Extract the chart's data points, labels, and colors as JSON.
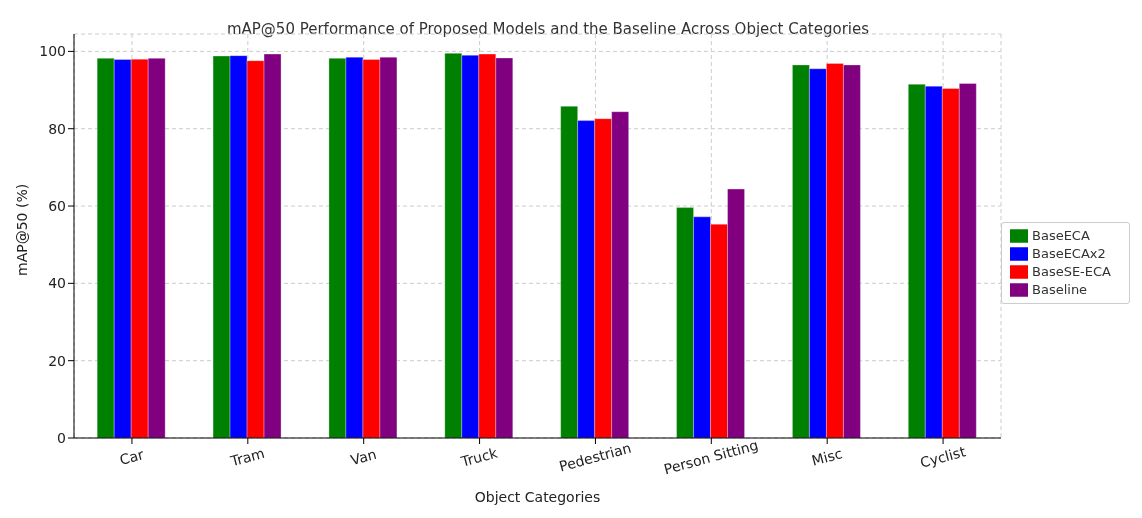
{
  "chart_data": {
    "type": "bar",
    "title": "mAP@50 Performance of Proposed Models and the Baseline Across Object Categories",
    "xlabel": "Object Categories",
    "ylabel": "mAP@50 (%)",
    "categories": [
      "Car",
      "Tram",
      "Van",
      "Truck",
      "Pedestrian",
      "Person Sitting",
      "Misc",
      "Cyclist"
    ],
    "series": [
      {
        "name": "BaseECA",
        "color": "#008000",
        "values": [
          98.2,
          98.8,
          98.2,
          99.5,
          85.8,
          59.6,
          96.5,
          91.5
        ]
      },
      {
        "name": "BaseECAx2",
        "color": "#0000ff",
        "values": [
          97.9,
          98.9,
          98.5,
          99.0,
          82.1,
          57.2,
          95.5,
          91.0
        ]
      },
      {
        "name": "BaseSE-ECA",
        "color": "#ff0000",
        "values": [
          98.0,
          97.6,
          97.9,
          99.3,
          82.6,
          55.3,
          96.9,
          90.4
        ]
      },
      {
        "name": "Baseline",
        "color": "#800080",
        "values": [
          98.2,
          99.3,
          98.5,
          98.3,
          84.4,
          64.4,
          96.5,
          91.7
        ]
      }
    ],
    "ylim": [
      0,
      104.5
    ],
    "yticks": [
      0,
      20,
      40,
      60,
      80,
      100
    ],
    "grid": true,
    "legend": "right"
  }
}
